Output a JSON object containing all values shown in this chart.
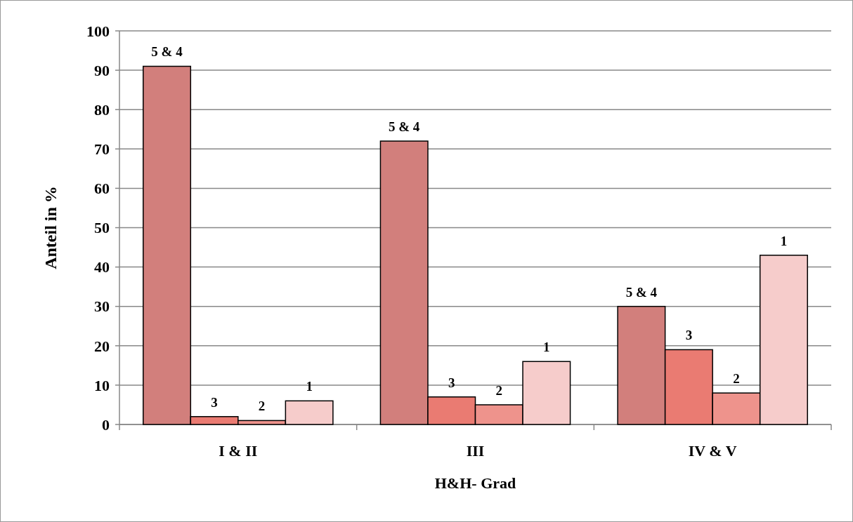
{
  "chart_data": {
    "type": "bar",
    "xlabel": "H&H- Grad",
    "ylabel": "Anteil in %",
    "categories": [
      "I & II",
      "III",
      "IV & V"
    ],
    "series": [
      {
        "name": "5 & 4",
        "color": "#d27f7c",
        "values": [
          91,
          72,
          30
        ]
      },
      {
        "name": "3",
        "color": "#ea7b72",
        "values": [
          2,
          7,
          19
        ]
      },
      {
        "name": "2",
        "color": "#ee938c",
        "values": [
          1,
          5,
          8
        ]
      },
      {
        "name": "1",
        "color": "#f6cccb",
        "values": [
          6,
          16,
          43
        ]
      }
    ],
    "ylim": [
      0,
      100
    ],
    "yticks": [
      0,
      10,
      20,
      30,
      40,
      50,
      60,
      70,
      80,
      90,
      100
    ],
    "grid": "y"
  }
}
